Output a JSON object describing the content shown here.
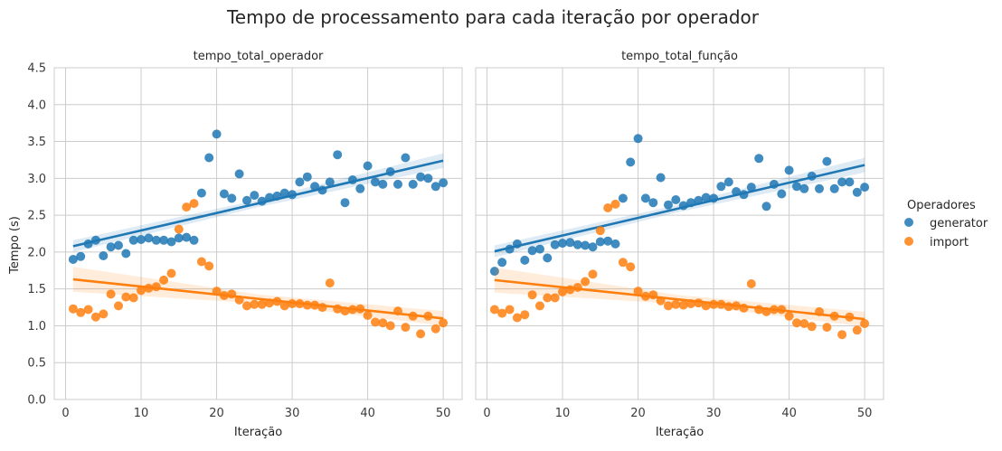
{
  "chart_data": {
    "type": "scatter",
    "title": "Tempo de processamento para cada iteração por operador",
    "ylabel": "Tempo (s)",
    "ylim": [
      0.0,
      4.5
    ],
    "yticks": [
      "0.0",
      "0.5",
      "1.0",
      "1.5",
      "2.0",
      "2.5",
      "3.0",
      "3.5",
      "4.0",
      "4.5"
    ],
    "xlim": [
      -1.5,
      52.5
    ],
    "xticks": [
      "0",
      "10",
      "20",
      "30",
      "40",
      "50"
    ],
    "grid": true,
    "legend": {
      "title": "Operadores",
      "placement": "right",
      "entries": [
        "generator",
        "import"
      ]
    },
    "colors": {
      "generator": "#1f77b4",
      "import": "#ff7f0e",
      "grid": "#cccccc"
    },
    "panels": [
      {
        "title": "tempo_total_operador",
        "xlabel": "Iteração",
        "series": [
          {
            "name": "generator",
            "x": [
              1,
              2,
              3,
              4,
              5,
              6,
              7,
              8,
              9,
              10,
              11,
              12,
              13,
              14,
              15,
              16,
              17,
              18,
              19,
              20,
              21,
              22,
              23,
              24,
              25,
              26,
              27,
              28,
              29,
              30,
              31,
              32,
              33,
              34,
              35,
              36,
              37,
              38,
              39,
              40,
              41,
              42,
              43,
              44,
              45,
              46,
              47,
              48,
              49,
              50
            ],
            "y": [
              1.9,
              1.94,
              2.11,
              2.16,
              1.95,
              2.07,
              2.09,
              1.98,
              2.16,
              2.17,
              2.19,
              2.16,
              2.16,
              2.14,
              2.19,
              2.2,
              2.16,
              2.8,
              3.28,
              3.6,
              2.79,
              2.73,
              3.06,
              2.7,
              2.77,
              2.69,
              2.74,
              2.76,
              2.8,
              2.78,
              2.95,
              3.02,
              2.89,
              2.84,
              2.95,
              3.32,
              2.67,
              2.98,
              2.86,
              3.17,
              2.95,
              2.92,
              3.09,
              2.92,
              3.28,
              2.92,
              3.02,
              3.0,
              2.89,
              2.94
            ],
            "trend": [
              [
                1,
                2.08
              ],
              [
                50,
                3.24
              ]
            ],
            "ci_halfwidth": [
              0.08,
              0.05,
              0.1
            ]
          },
          {
            "name": "import",
            "x": [
              1,
              2,
              3,
              4,
              5,
              6,
              7,
              8,
              9,
              10,
              11,
              12,
              13,
              14,
              15,
              16,
              17,
              18,
              19,
              20,
              21,
              22,
              23,
              24,
              25,
              26,
              27,
              28,
              29,
              30,
              31,
              32,
              33,
              34,
              35,
              36,
              37,
              38,
              39,
              40,
              41,
              42,
              43,
              44,
              45,
              46,
              47,
              48,
              49,
              50
            ],
            "y": [
              1.23,
              1.18,
              1.22,
              1.12,
              1.16,
              1.43,
              1.27,
              1.39,
              1.38,
              1.48,
              1.51,
              1.53,
              1.62,
              1.71,
              2.31,
              2.61,
              2.66,
              1.87,
              1.81,
              1.47,
              1.41,
              1.43,
              1.35,
              1.27,
              1.29,
              1.29,
              1.31,
              1.33,
              1.27,
              1.3,
              1.3,
              1.28,
              1.28,
              1.25,
              1.58,
              1.23,
              1.2,
              1.22,
              1.23,
              1.14,
              1.05,
              1.04,
              1.0,
              1.2,
              0.98,
              1.13,
              0.89,
              1.13,
              0.96,
              1.04
            ],
            "trend": [
              [
                1,
                1.63
              ],
              [
                50,
                1.1
              ]
            ],
            "ci_halfwidth": [
              0.17,
              0.06,
              0.1
            ]
          }
        ]
      },
      {
        "title": "tempo_total_função",
        "xlabel": "Iteração",
        "series": [
          {
            "name": "generator",
            "x": [
              1,
              2,
              3,
              4,
              5,
              6,
              7,
              8,
              9,
              10,
              11,
              12,
              13,
              14,
              15,
              16,
              17,
              18,
              19,
              20,
              21,
              22,
              23,
              24,
              25,
              26,
              27,
              28,
              29,
              30,
              31,
              32,
              33,
              34,
              35,
              36,
              37,
              38,
              39,
              40,
              41,
              42,
              43,
              44,
              45,
              46,
              47,
              48,
              49,
              50
            ],
            "y": [
              1.74,
              1.86,
              2.04,
              2.11,
              1.89,
              2.02,
              2.04,
              1.92,
              2.1,
              2.12,
              2.13,
              2.1,
              2.09,
              2.07,
              2.14,
              2.15,
              2.11,
              2.73,
              3.22,
              3.54,
              2.73,
              2.67,
              3.01,
              2.64,
              2.71,
              2.63,
              2.67,
              2.7,
              2.74,
              2.73,
              2.89,
              2.95,
              2.82,
              2.78,
              2.88,
              3.27,
              2.62,
              2.92,
              2.79,
              3.11,
              2.89,
              2.86,
              3.03,
              2.86,
              3.23,
              2.86,
              2.95,
              2.95,
              2.81,
              2.88
            ],
            "trend": [
              [
                1,
                2.01
              ],
              [
                50,
                3.18
              ]
            ],
            "ci_halfwidth": [
              0.08,
              0.05,
              0.1
            ]
          },
          {
            "name": "import",
            "x": [
              1,
              2,
              3,
              4,
              5,
              6,
              7,
              8,
              9,
              10,
              11,
              12,
              13,
              14,
              15,
              16,
              17,
              18,
              19,
              20,
              21,
              22,
              23,
              24,
              25,
              26,
              27,
              28,
              29,
              30,
              31,
              32,
              33,
              34,
              35,
              36,
              37,
              38,
              39,
              40,
              41,
              42,
              43,
              44,
              45,
              46,
              47,
              48,
              49,
              50
            ],
            "y": [
              1.22,
              1.17,
              1.22,
              1.11,
              1.15,
              1.42,
              1.27,
              1.38,
              1.38,
              1.46,
              1.49,
              1.52,
              1.6,
              1.7,
              2.29,
              2.6,
              2.65,
              1.86,
              1.8,
              1.47,
              1.4,
              1.42,
              1.34,
              1.27,
              1.29,
              1.28,
              1.3,
              1.31,
              1.27,
              1.29,
              1.29,
              1.26,
              1.27,
              1.24,
              1.57,
              1.22,
              1.19,
              1.22,
              1.22,
              1.13,
              1.04,
              1.03,
              0.99,
              1.19,
              0.98,
              1.13,
              0.88,
              1.12,
              0.94,
              1.03
            ],
            "trend": [
              [
                1,
                1.62
              ],
              [
                50,
                1.09
              ]
            ],
            "ci_halfwidth": [
              0.17,
              0.06,
              0.1
            ]
          }
        ]
      }
    ]
  }
}
